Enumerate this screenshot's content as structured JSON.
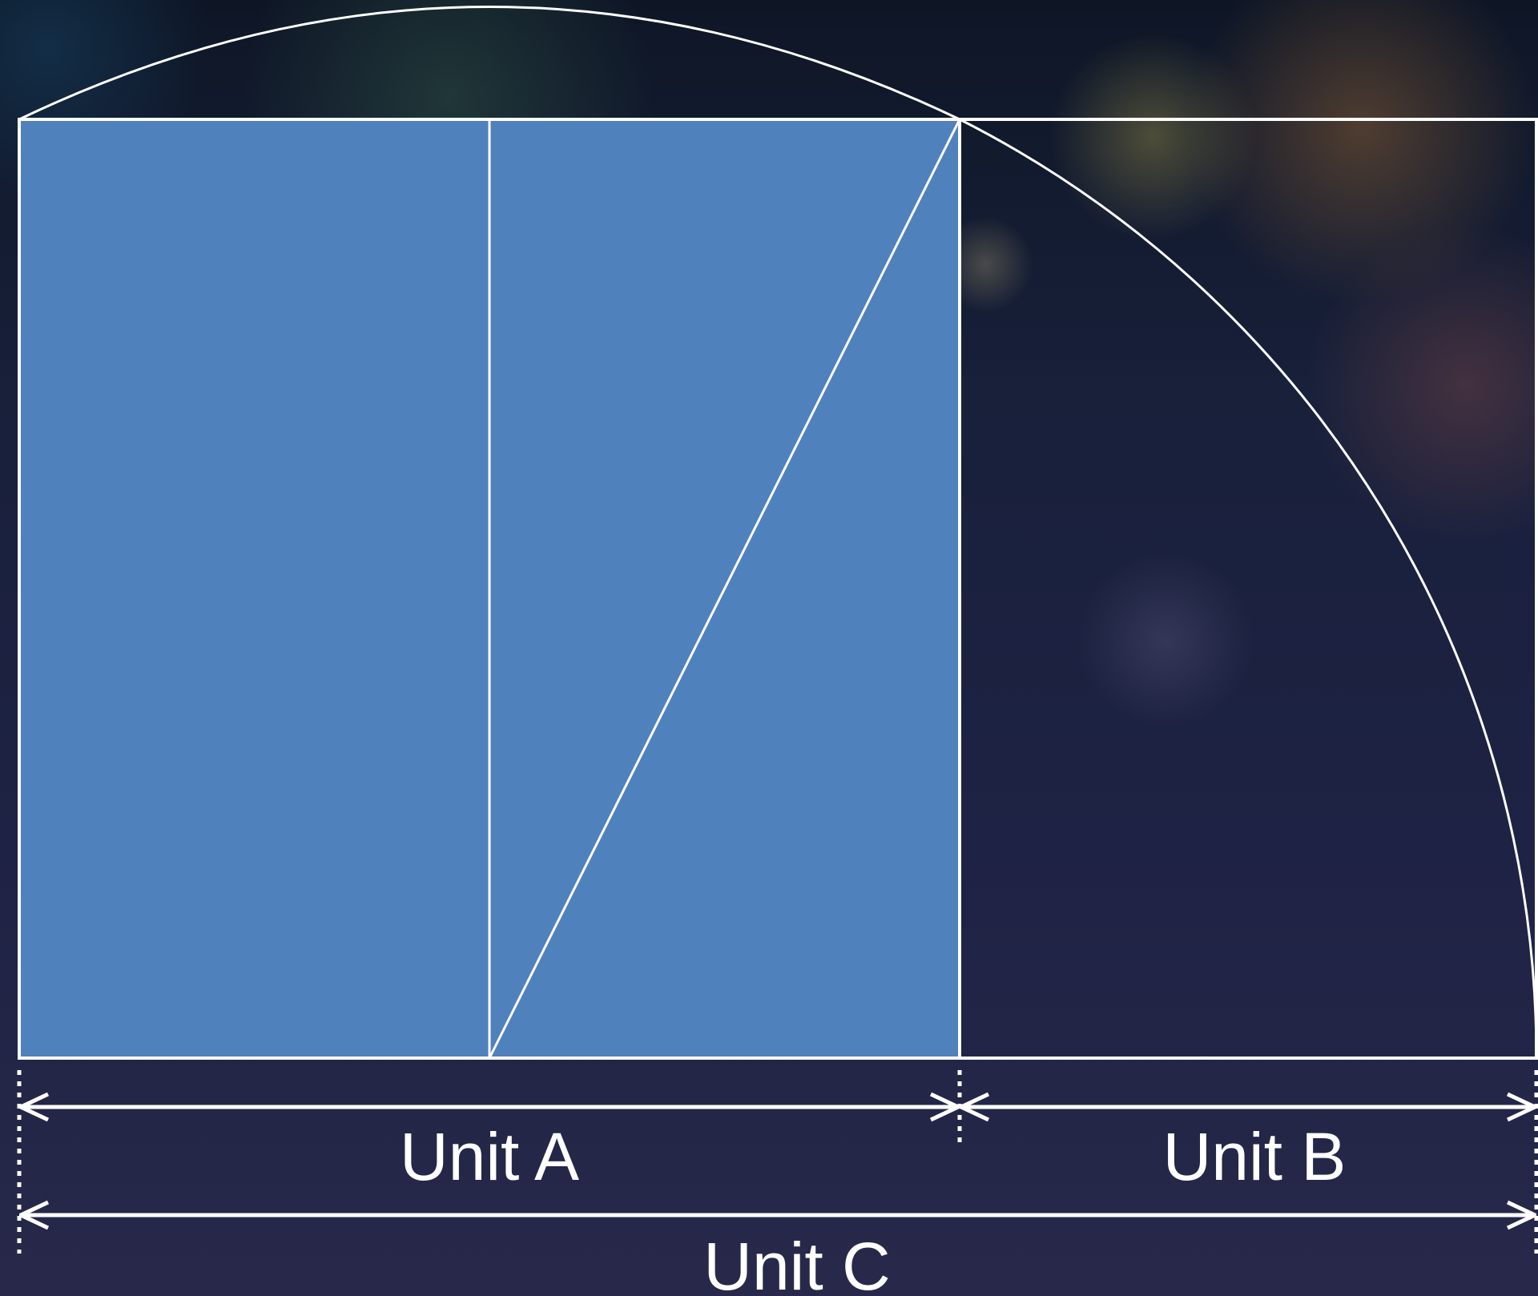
{
  "labels": {
    "unit_a": "Unit A",
    "unit_b": "Unit B",
    "unit_c": "Unit C"
  },
  "colors": {
    "square_fill": "#4f81bd",
    "line": "#ffffff"
  }
}
